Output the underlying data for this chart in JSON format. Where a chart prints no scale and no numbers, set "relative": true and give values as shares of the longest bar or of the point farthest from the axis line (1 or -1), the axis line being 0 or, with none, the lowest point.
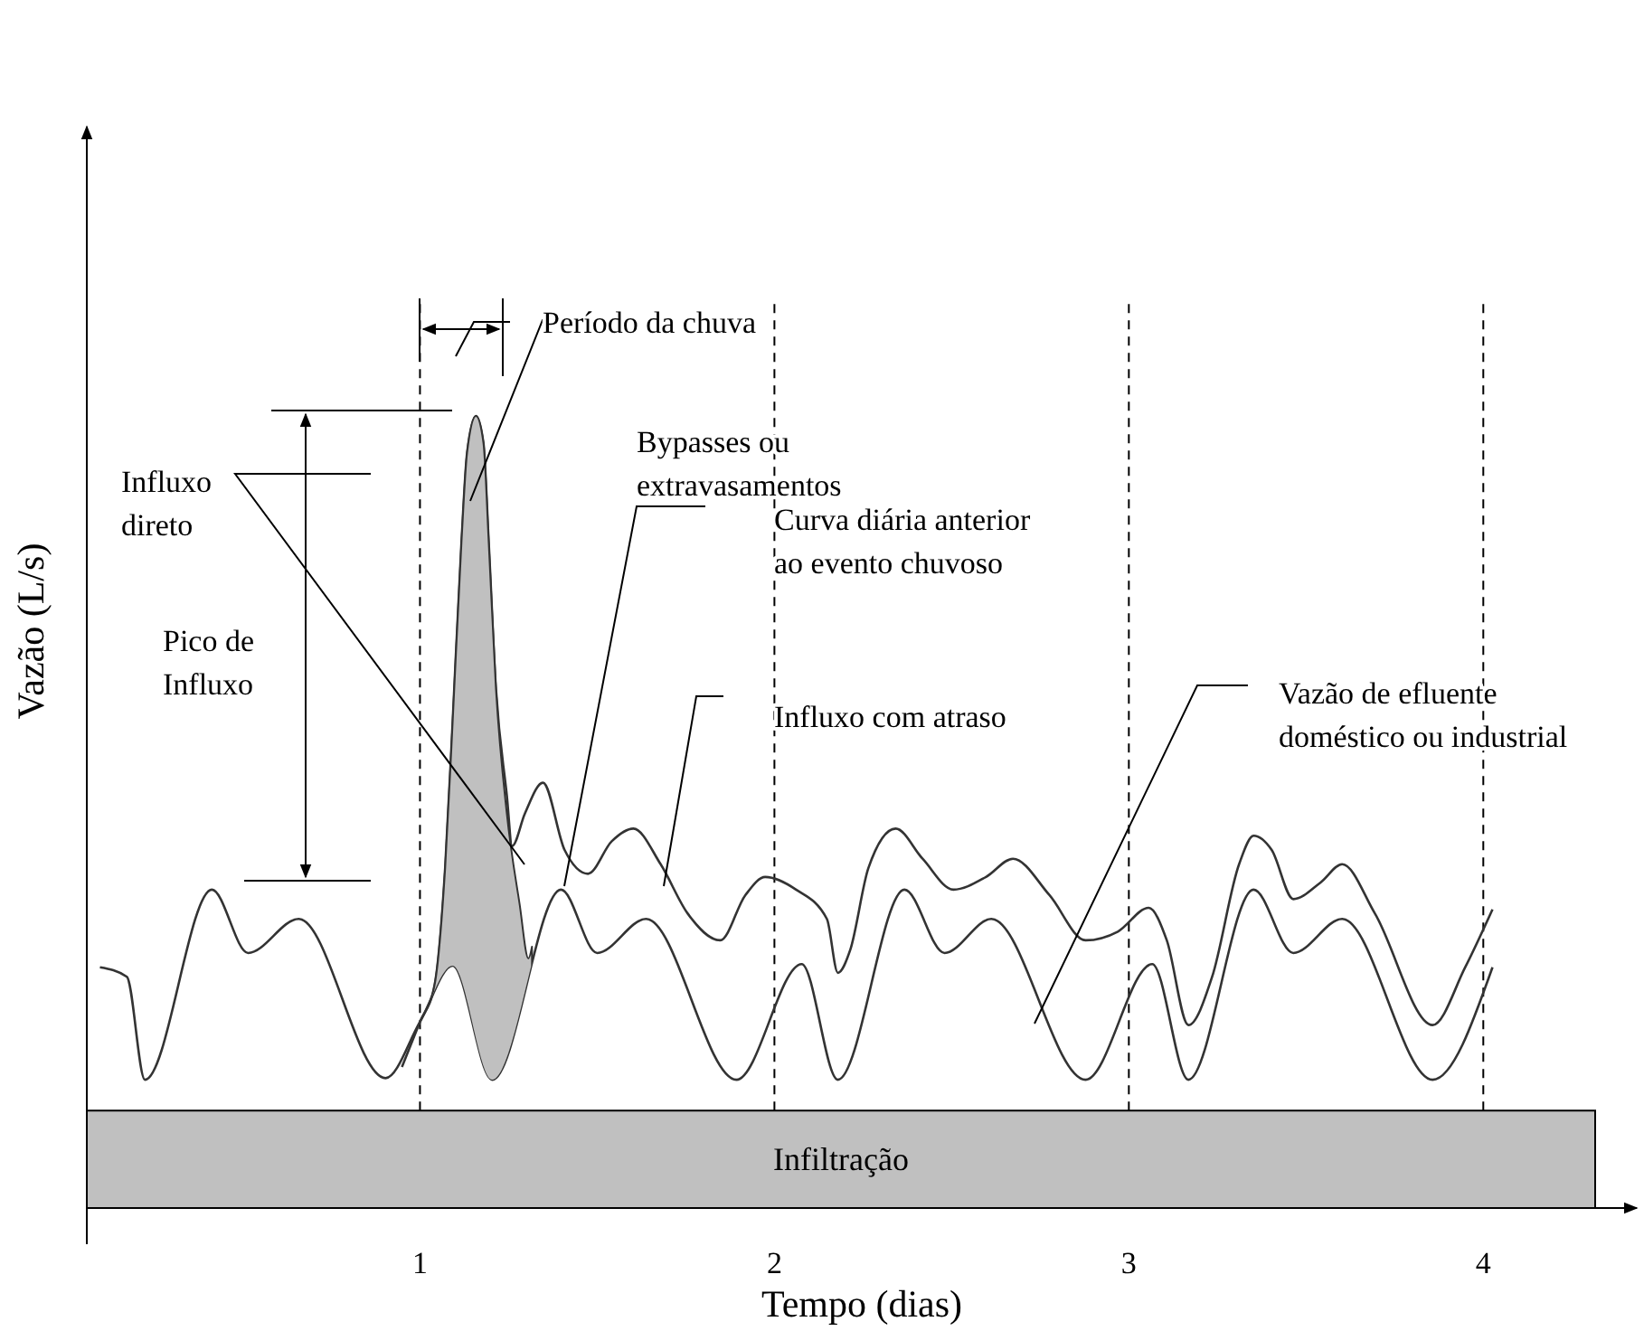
{
  "chart_data": {
    "type": "line",
    "relative": true,
    "xlabel": "Tempo (dias)",
    "ylabel": "Vazão (L/s)",
    "xlim": [
      0.06,
      4.433
    ],
    "xticks": [
      1,
      2,
      3,
      4
    ],
    "series": [
      {
        "color": "#333333",
        "x": [
          0.097,
          0.173,
          0.224,
          0.413,
          0.515,
          0.658,
          0.903,
          1.0,
          1.092,
          1.204,
          1.398,
          1.5,
          1.638,
          1.893,
          2.077,
          2.179,
          2.367,
          2.48,
          2.612,
          2.878,
          3.066,
          3.168,
          3.352,
          3.464,
          3.602,
          3.857,
          4.026
        ],
        "values": [
          0.304,
          0.292,
          0.162,
          0.402,
          0.322,
          0.365,
          0.164,
          0.235,
          0.306,
          0.162,
          0.402,
          0.322,
          0.365,
          0.162,
          0.308,
          0.162,
          0.402,
          0.322,
          0.365,
          0.162,
          0.308,
          0.162,
          0.402,
          0.322,
          0.365,
          0.162,
          0.304
        ]
      },
      {
        "color": "#333333",
        "x": [
          0.949,
          1.0,
          1.041,
          1.071,
          1.092,
          1.117,
          1.133,
          1.158,
          1.179,
          1.194,
          1.214,
          1.245,
          1.26,
          1.296,
          1.347,
          1.408,
          1.474,
          1.541,
          1.602,
          1.679,
          1.755,
          1.847,
          1.918,
          1.974,
          2.061,
          2.148,
          2.179,
          2.214,
          2.265,
          2.342,
          2.418,
          2.505,
          2.597,
          2.673,
          2.776,
          2.878,
          2.969,
          3.056,
          3.107,
          3.168,
          3.235,
          3.311,
          3.352,
          3.403,
          3.464,
          3.541,
          3.602,
          3.694,
          3.857,
          3.949,
          4.026
        ],
        "values": [
          0.178,
          0.235,
          0.281,
          0.429,
          0.612,
          0.84,
          0.954,
          1,
          0.966,
          0.84,
          0.658,
          0.521,
          0.457,
          0.498,
          0.537,
          0.452,
          0.422,
          0.463,
          0.479,
          0.434,
          0.372,
          0.338,
          0.395,
          0.418,
          0.402,
          0.365,
          0.297,
          0.326,
          0.429,
          0.479,
          0.441,
          0.402,
          0.418,
          0.441,
          0.395,
          0.338,
          0.349,
          0.379,
          0.338,
          0.231,
          0.292,
          0.434,
          0.47,
          0.452,
          0.39,
          0.411,
          0.434,
          0.372,
          0.231,
          0.304,
          0.377
        ]
      },
      {
        "type": "area",
        "color": "#c0c0c0",
        "x": [
          1.0,
          1.041,
          1.071,
          1.092,
          1.117,
          1.133,
          1.158,
          1.179,
          1.194,
          1.214,
          1.245,
          1.281,
          1.306,
          1.316
        ],
        "values": [
          0.235,
          0.281,
          0.429,
          0.612,
          0.84,
          0.954,
          1,
          0.966,
          0.84,
          0.658,
          0.498,
          0.384,
          0.315,
          0.33
        ]
      }
    ],
    "bands": [
      {
        "axis": "y",
        "from": 0,
        "to": 0.123,
        "label": "Infiltração",
        "color": "#c0c0c0"
      }
    ],
    "ref_lines": [
      {
        "axis": "x",
        "value": 1,
        "line_style": "dashed"
      },
      {
        "axis": "x",
        "value": 2,
        "line_style": "dashed"
      },
      {
        "axis": "x",
        "value": 3,
        "line_style": "dashed"
      },
      {
        "axis": "x",
        "value": 4,
        "line_style": "dashed"
      }
    ],
    "annotations": [
      "Período da chuva",
      "Bypasses ou\nextravasamentos",
      "Influxo\ndireto",
      "Pico de\nInfluxo",
      "Curva diária anterior\nao evento chuvoso",
      "Influxo com atraso",
      "Vazão de efluente\ndoméstico ou industrial"
    ]
  }
}
